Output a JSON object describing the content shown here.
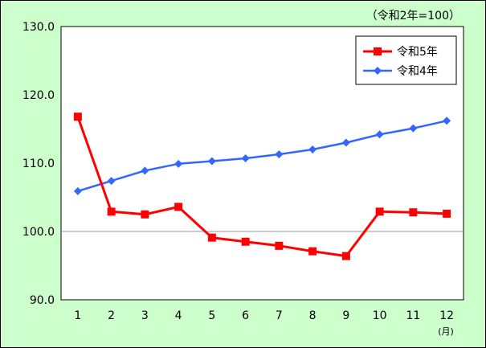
{
  "chart_data": {
    "type": "line",
    "title": "",
    "unit_note": "（令和2年=100）",
    "x_unit": "(月)",
    "xlabel": "",
    "ylabel": "",
    "categories": [
      "1",
      "2",
      "3",
      "4",
      "5",
      "6",
      "7",
      "8",
      "9",
      "10",
      "11",
      "12"
    ],
    "ylim": [
      90,
      130
    ],
    "yticks": [
      90,
      100,
      110,
      120,
      130
    ],
    "ytick_labels": [
      "90.0",
      "100.0",
      "110.0",
      "120.0",
      "130.0"
    ],
    "grid": "horizontal line at 100.0 only",
    "legend_position": "top-right",
    "series": [
      {
        "name": "令和5年",
        "color": "#ff0000",
        "marker": "square",
        "values": [
          116.8,
          102.9,
          102.5,
          103.6,
          99.1,
          98.5,
          97.9,
          97.1,
          96.4,
          102.9,
          102.8,
          102.6
        ]
      },
      {
        "name": "令和4年",
        "color": "#3366ff",
        "marker": "diamond",
        "values": [
          105.9,
          107.4,
          108.9,
          109.9,
          110.3,
          110.7,
          111.3,
          112.0,
          113.0,
          114.2,
          115.1,
          116.2
        ]
      }
    ],
    "colors": {
      "background": "#ccffcc",
      "plot_area": "#ffffff",
      "border": "#000000"
    }
  }
}
